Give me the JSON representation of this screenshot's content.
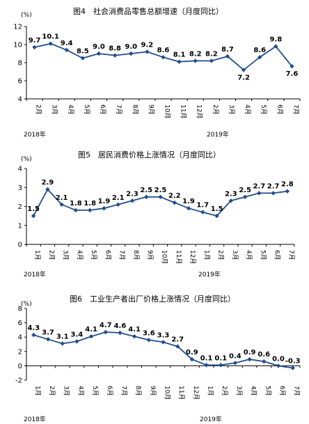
{
  "chart_data": [
    {
      "type": "line",
      "title": "图4　社会消费品零售总额增速（月度同比）",
      "unit": "(%)",
      "ylim": [
        4,
        12
      ],
      "yticks": [
        4,
        6,
        8,
        10,
        12
      ],
      "categories": [
        "2月",
        "3月",
        "4月",
        "5月",
        "6月",
        "7月",
        "8月",
        "9月",
        "10月",
        "11月",
        "12月",
        "2月",
        "3月",
        "4月",
        "5月",
        "6月",
        "7月"
      ],
      "values": [
        9.7,
        10.1,
        9.4,
        8.5,
        9.0,
        8.8,
        9.0,
        9.2,
        8.6,
        8.1,
        8.2,
        8.2,
        8.7,
        7.2,
        8.6,
        9.8,
        7.6
      ],
      "value_labels": [
        "9.7",
        "10.1",
        "9.4",
        "8.5",
        "9.0",
        "8.8",
        "9.0",
        "9.2",
        "8.6",
        "8.1",
        "8.2",
        "8.2",
        "8.7",
        "7.2",
        "8.6",
        "9.8",
        "7.6"
      ],
      "years": [
        {
          "label": "2018年",
          "start_index": 0
        },
        {
          "label": "2019年",
          "start_index": 11
        }
      ]
    },
    {
      "type": "line",
      "title": "图5　居民消费价格上涨情况（月度同比）",
      "unit": "(%)",
      "ylim": [
        0,
        4
      ],
      "yticks": [
        0,
        1,
        2,
        3,
        4
      ],
      "categories": [
        "1月",
        "2月",
        "3月",
        "4月",
        "5月",
        "6月",
        "7月",
        "8月",
        "9月",
        "10月",
        "11月",
        "12月",
        "1月",
        "2月",
        "3月",
        "4月",
        "5月",
        "6月",
        "7月"
      ],
      "values": [
        1.5,
        2.9,
        2.1,
        1.8,
        1.8,
        1.9,
        2.1,
        2.3,
        2.5,
        2.5,
        2.2,
        1.9,
        1.7,
        1.5,
        2.3,
        2.5,
        2.7,
        2.7,
        2.8
      ],
      "value_labels": [
        "1.5",
        "2.9",
        "2.1",
        "1.8",
        "1.8",
        "1.9",
        "2.1",
        "2.3",
        "2.5",
        "2.5",
        "2.2",
        "1.9",
        "1.7",
        "1.5",
        "2.3",
        "2.5",
        "2.7",
        "2.7",
        "2.8"
      ],
      "years": [
        {
          "label": "2018年",
          "start_index": 0
        },
        {
          "label": "2019年",
          "start_index": 12
        }
      ]
    },
    {
      "type": "line",
      "title": "图6　工业生产者出厂价格上涨情况（月度同比）",
      "unit": "(%)",
      "ylim": [
        -2,
        8
      ],
      "yticks": [
        -2,
        0,
        2,
        4,
        6,
        8
      ],
      "categories": [
        "1月",
        "2月",
        "3月",
        "4月",
        "5月",
        "6月",
        "7月",
        "8月",
        "9月",
        "10月",
        "11月",
        "12月",
        "1月",
        "2月",
        "3月",
        "4月",
        "5月",
        "6月",
        "7月"
      ],
      "values": [
        4.3,
        3.7,
        3.1,
        3.4,
        4.1,
        4.7,
        4.6,
        4.1,
        3.6,
        3.3,
        2.7,
        0.9,
        0.1,
        0.1,
        0.4,
        0.9,
        0.6,
        0.0,
        -0.3
      ],
      "value_labels": [
        "4.3",
        "3.7",
        "3.1",
        "3.4",
        "4.1",
        "4.7",
        "4.6",
        "4.1",
        "3.6",
        "3.3",
        "2.7",
        "0.9",
        "0.1",
        "0.1",
        "0.4",
        "0.9",
        "0.6",
        "0.0",
        "-0.3"
      ],
      "years": [
        {
          "label": "2018年",
          "start_index": 0
        },
        {
          "label": "2019年",
          "start_index": 12
        }
      ]
    }
  ],
  "colors": {
    "line": "#1f4e8c",
    "marker": "#1f4e8c",
    "axis": "#000000"
  }
}
